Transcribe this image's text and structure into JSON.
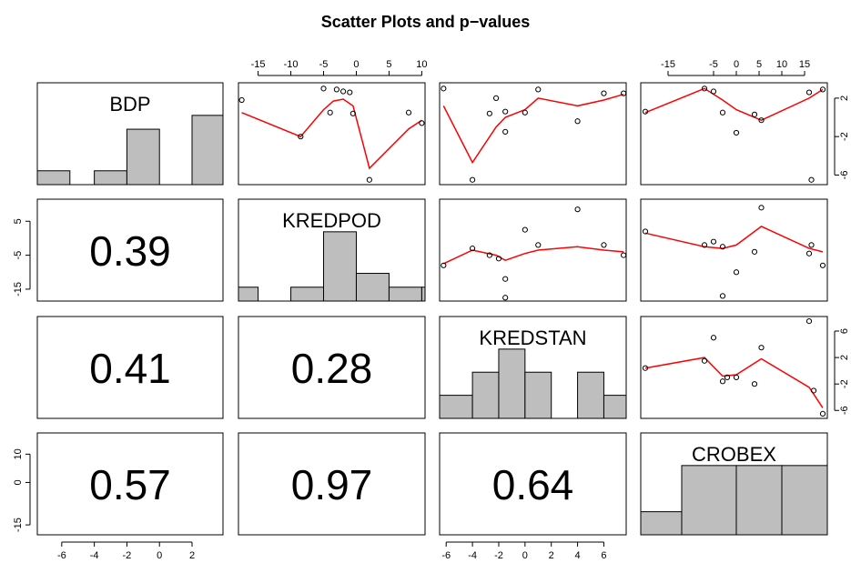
{
  "title": "Scatter Plots and p−values",
  "chart_data": {
    "type": "scatter",
    "variables": [
      "BDP",
      "KREDPOD",
      "KREDSTAN",
      "CROBEX"
    ],
    "colors": {
      "points": "#000000",
      "smooth": "#ff0000",
      "hist_fill": "#bebebe",
      "frame": "#000000"
    },
    "axis_ticks": {
      "BDP": [
        -6,
        -4,
        -2,
        0,
        2
      ],
      "KREDPOD": [
        -15,
        -10,
        -5,
        0,
        5,
        10
      ],
      "KREDSTAN": [
        -6,
        -4,
        -2,
        0,
        2,
        4,
        6
      ],
      "CROBEX": [
        -15,
        -5,
        0,
        5,
        10,
        15
      ]
    },
    "axis_ticks_right": {
      "BDP": [
        "2",
        "-2",
        "-6"
      ],
      "KREDSTAN": [
        "6",
        "2",
        "-2",
        "-6"
      ]
    },
    "axis_ticks_left": {
      "KREDPOD": [
        "5",
        "-5",
        "-15"
      ],
      "CROBEX": [
        "10",
        "0",
        "-15"
      ]
    },
    "p_values": [
      {
        "row": "KREDPOD",
        "col": "BDP",
        "value": "0.39"
      },
      {
        "row": "KREDSTAN",
        "col": "BDP",
        "value": "0.41"
      },
      {
        "row": "KREDSTAN",
        "col": "KREDPOD",
        "value": "0.28"
      },
      {
        "row": "CROBEX",
        "col": "BDP",
        "value": "0.57"
      },
      {
        "row": "CROBEX",
        "col": "KREDPOD",
        "value": "0.97"
      },
      {
        "row": "CROBEX",
        "col": "KREDSTAN",
        "value": "0.64"
      }
    ],
    "histograms": {
      "BDP": {
        "range": [
          -7.5,
          3.9
        ],
        "breaks": [
          -7.5,
          -5.5,
          -4,
          -2,
          0,
          2,
          3.9
        ],
        "counts": [
          1,
          0,
          1,
          4,
          0,
          5
        ]
      },
      "KREDPOD": {
        "range": [
          -18,
          10.5
        ],
        "breaks": [
          -18,
          -15,
          -10,
          -5,
          0,
          5,
          10,
          10.5
        ],
        "counts": [
          1,
          0,
          1,
          5,
          2,
          1,
          1
        ]
      },
      "KREDSTAN": {
        "range": [
          -6.5,
          7.7
        ],
        "breaks": [
          -6.5,
          -4,
          -2,
          0,
          2,
          4,
          6,
          7.7
        ],
        "counts": [
          1,
          2,
          3,
          2,
          0,
          2,
          1
        ]
      },
      "CROBEX": {
        "range": [
          -21,
          20
        ],
        "breaks": [
          -21,
          -12,
          0,
          10,
          20
        ],
        "counts": [
          1,
          3,
          3,
          3
        ]
      }
    },
    "panels": [
      {
        "x": "KREDPOD",
        "y": "BDP",
        "points": [
          [
            -17.5,
            1.8
          ],
          [
            -8.5,
            -2.0
          ],
          [
            -5,
            3.0
          ],
          [
            -4,
            0.5
          ],
          [
            -3,
            2.9
          ],
          [
            -2,
            2.7
          ],
          [
            -1,
            2.6
          ],
          [
            -0.5,
            0.4
          ],
          [
            2,
            -6.5
          ],
          [
            8,
            0.5
          ],
          [
            10,
            -0.6
          ]
        ],
        "smooth": [
          [
            -17.5,
            0.5
          ],
          [
            -8.5,
            -2.0
          ],
          [
            -5,
            0.8
          ],
          [
            -3.5,
            1.7
          ],
          [
            -2,
            1.9
          ],
          [
            -0.5,
            1.2
          ],
          [
            2,
            -5.3
          ],
          [
            8,
            -1.2
          ],
          [
            10,
            -0.3
          ]
        ]
      },
      {
        "x": "KREDSTAN",
        "y": "BDP",
        "points": [
          [
            -6.2,
            3.0
          ],
          [
            -4,
            -6.5
          ],
          [
            -2.2,
            2.0
          ],
          [
            -2.7,
            0.4
          ],
          [
            -1.5,
            0.6
          ],
          [
            -1.5,
            -1.5
          ],
          [
            0,
            0.5
          ],
          [
            1,
            2.9
          ],
          [
            4,
            -0.4
          ],
          [
            6,
            2.5
          ],
          [
            7.5,
            2.5
          ]
        ],
        "smooth": [
          [
            -6.2,
            1.2
          ],
          [
            -4,
            -4.7
          ],
          [
            -2.2,
            -1.0
          ],
          [
            -1.5,
            0
          ],
          [
            0,
            0.8
          ],
          [
            1,
            2.0
          ],
          [
            4,
            1.2
          ],
          [
            6,
            1.8
          ],
          [
            7.5,
            2.4
          ]
        ]
      },
      {
        "x": "CROBEX",
        "y": "BDP",
        "points": [
          [
            -20,
            0.6
          ],
          [
            -7,
            3.0
          ],
          [
            -5,
            2.7
          ],
          [
            -3,
            0.5
          ],
          [
            0,
            -1.6
          ],
          [
            4,
            0.3
          ],
          [
            5.5,
            -0.3
          ],
          [
            16,
            2.6
          ],
          [
            16.5,
            -6.5
          ],
          [
            19,
            2.9
          ]
        ],
        "smooth": [
          [
            -20,
            0.5
          ],
          [
            -7,
            3.0
          ],
          [
            -3,
            1.8
          ],
          [
            0,
            0.8
          ],
          [
            5.5,
            -0.3
          ],
          [
            16,
            2.0
          ],
          [
            19,
            2.9
          ]
        ]
      },
      {
        "x": "KREDSTAN",
        "y": "KREDPOD",
        "points": [
          [
            -6.2,
            -8
          ],
          [
            -4,
            -3
          ],
          [
            -2.7,
            -5
          ],
          [
            -2,
            -6
          ],
          [
            -1.5,
            -12
          ],
          [
            -1.5,
            -17.5
          ],
          [
            0,
            2.5
          ],
          [
            1,
            -2
          ],
          [
            4,
            8.5
          ],
          [
            6,
            -2
          ],
          [
            7.5,
            -5
          ]
        ],
        "smooth": [
          [
            -6.2,
            -7.5
          ],
          [
            -4,
            -3.5
          ],
          [
            -2.2,
            -5
          ],
          [
            -1.5,
            -6.5
          ],
          [
            0,
            -4.5
          ],
          [
            1,
            -3.5
          ],
          [
            4,
            -2.5
          ],
          [
            6,
            -3.5
          ],
          [
            7.5,
            -4
          ]
        ]
      },
      {
        "x": "CROBEX",
        "y": "KREDPOD",
        "points": [
          [
            -20,
            2
          ],
          [
            -7,
            -2
          ],
          [
            -5,
            -1
          ],
          [
            -3,
            -2.5
          ],
          [
            0,
            -10
          ],
          [
            4,
            -4
          ],
          [
            5.5,
            9
          ],
          [
            16,
            -4.5
          ],
          [
            16.5,
            -2
          ],
          [
            19,
            -8
          ],
          [
            -3,
            -17
          ]
        ],
        "smooth": [
          [
            -20,
            1.5
          ],
          [
            -7,
            -2.5
          ],
          [
            -3,
            -3
          ],
          [
            0,
            -2
          ],
          [
            5.5,
            3.5
          ],
          [
            16,
            -3
          ],
          [
            19,
            -4
          ]
        ]
      },
      {
        "x": "CROBEX",
        "y": "KREDSTAN",
        "points": [
          [
            -20,
            0.4
          ],
          [
            -7,
            1.5
          ],
          [
            -5,
            5.0
          ],
          [
            -3,
            -1.6
          ],
          [
            -2,
            -1.0
          ],
          [
            0,
            -1.0
          ],
          [
            4,
            -2.0
          ],
          [
            5.5,
            3.5
          ],
          [
            16,
            7.5
          ],
          [
            17,
            -3.0
          ],
          [
            19,
            -6.5
          ]
        ],
        "smooth": [
          [
            -20,
            0.4
          ],
          [
            -7,
            2.0
          ],
          [
            -3,
            -0.8
          ],
          [
            0,
            -0.6
          ],
          [
            5.5,
            1.8
          ],
          [
            16,
            -2.5
          ],
          [
            19,
            -5.6
          ]
        ]
      }
    ]
  }
}
